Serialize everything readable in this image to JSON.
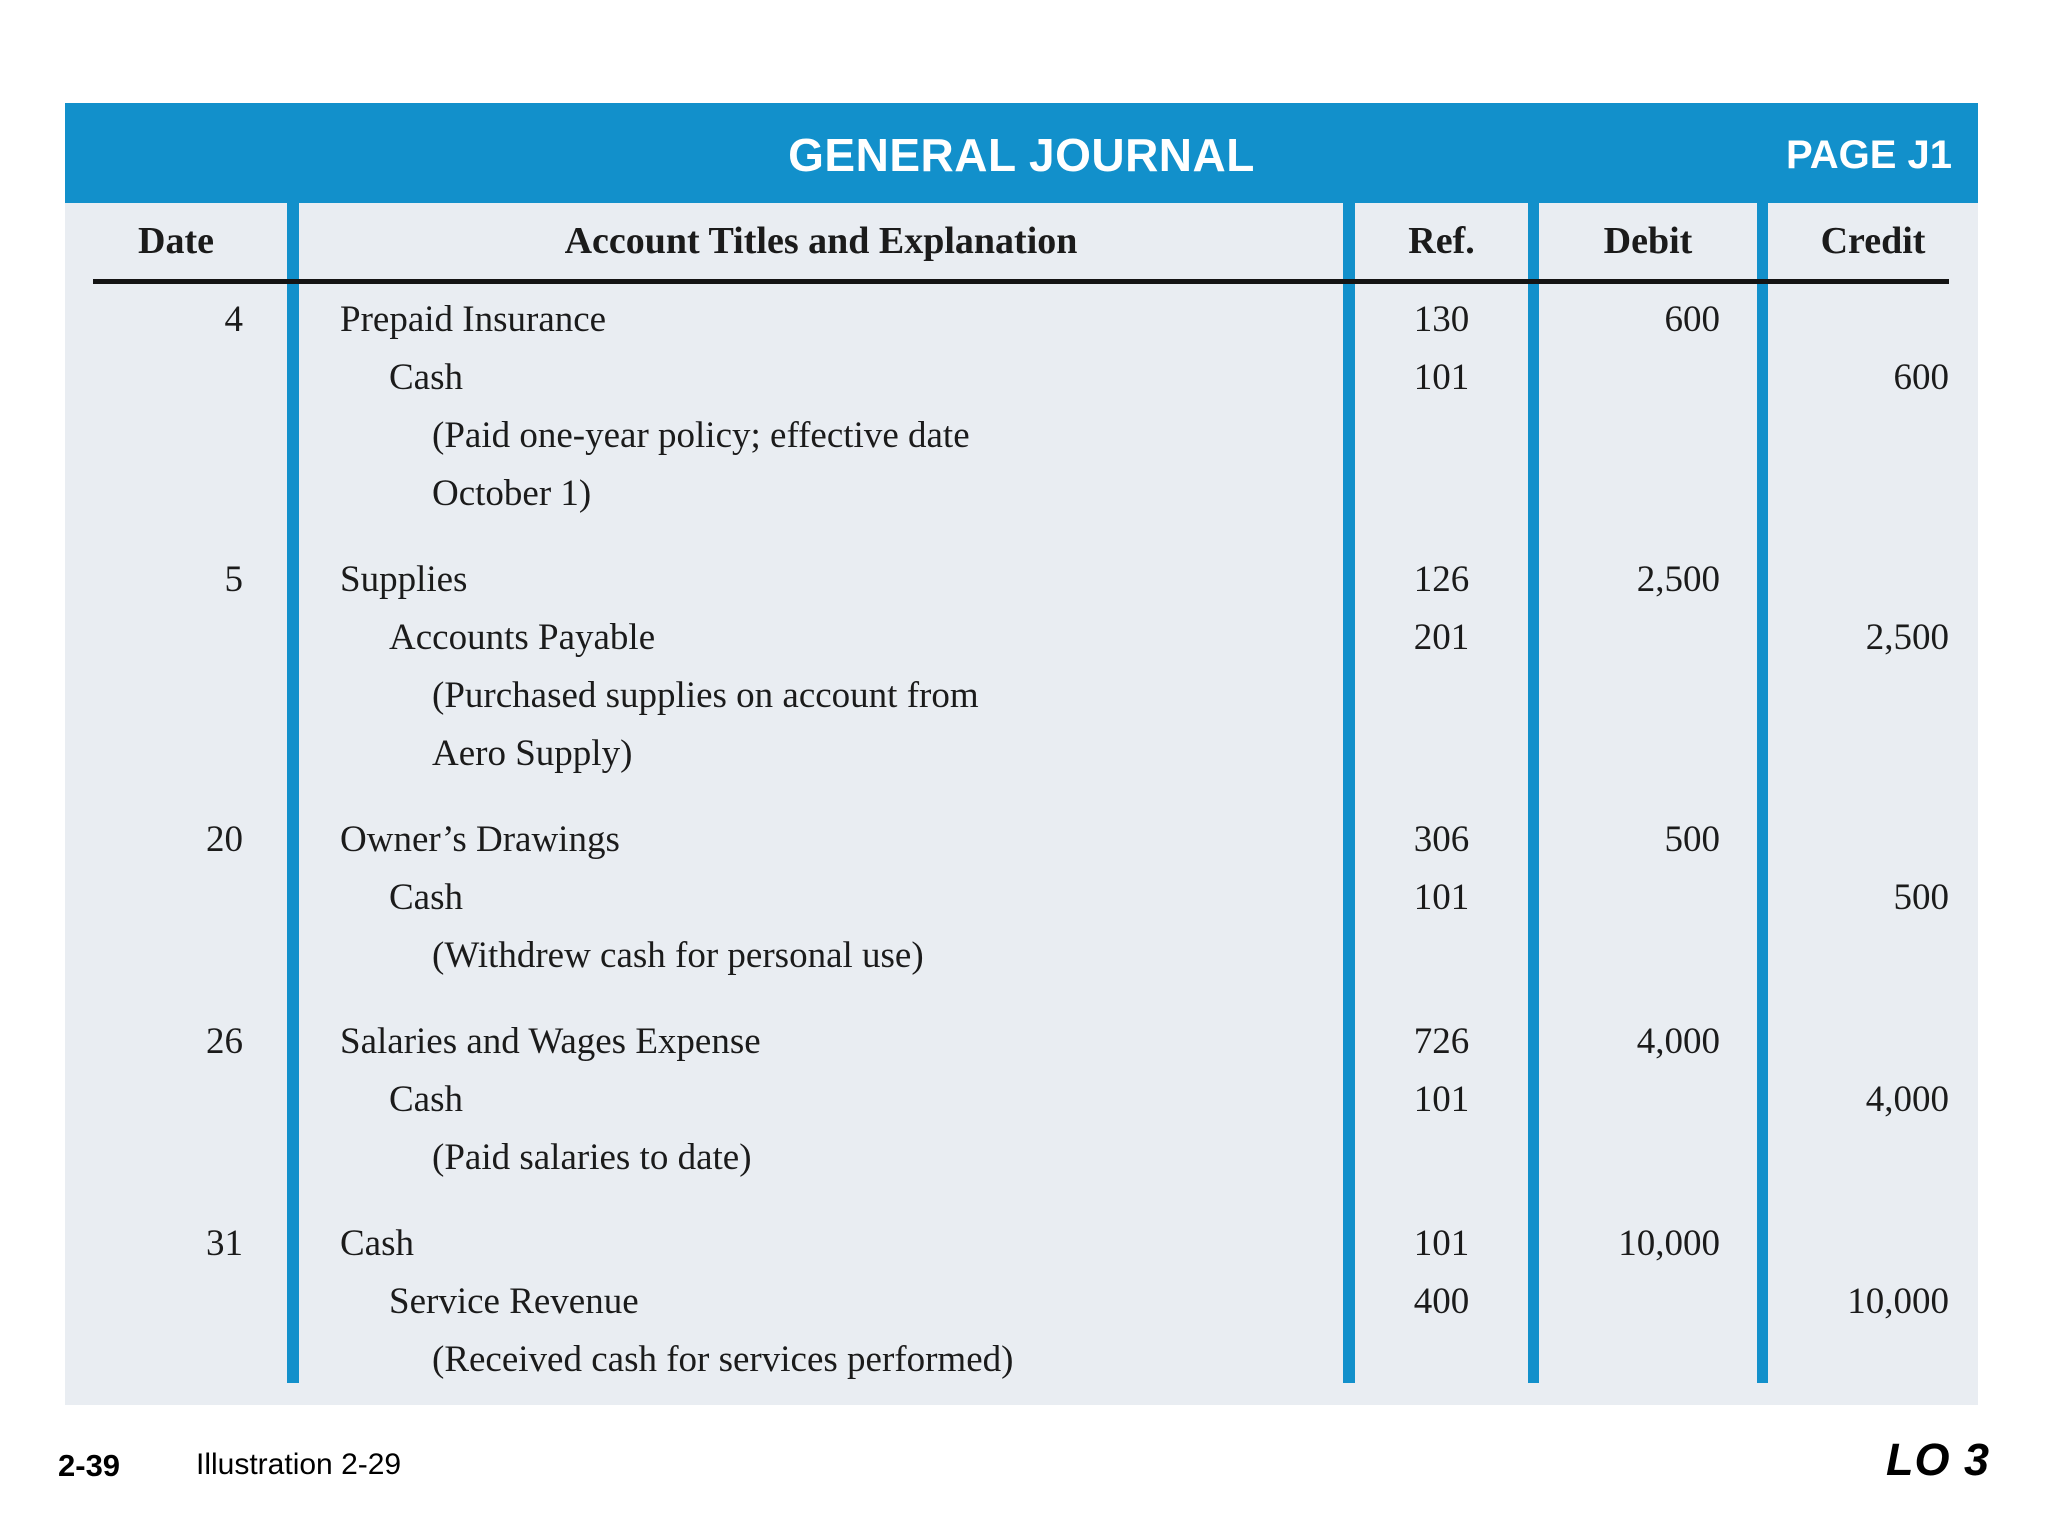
{
  "header": {
    "title": "GENERAL JOURNAL",
    "page_label": "PAGE J1"
  },
  "columns": {
    "date": "Date",
    "account": "Account Titles and Explanation",
    "ref": "Ref.",
    "debit": "Debit",
    "credit": "Credit"
  },
  "entries": [
    {
      "date": "4",
      "lines": [
        {
          "text": "Prepaid Insurance",
          "indent": 1,
          "ref": "130",
          "debit": "600",
          "credit": ""
        },
        {
          "text": "Cash",
          "indent": 2,
          "ref": "101",
          "debit": "",
          "credit": "600"
        },
        {
          "text": "(Paid one-year policy; effective date",
          "indent": 3,
          "ref": "",
          "debit": "",
          "credit": ""
        },
        {
          "text": "October 1)",
          "indent": 3,
          "ref": "",
          "debit": "",
          "credit": ""
        }
      ]
    },
    {
      "date": "5",
      "lines": [
        {
          "text": "Supplies",
          "indent": 1,
          "ref": "126",
          "debit": "2,500",
          "credit": ""
        },
        {
          "text": "Accounts Payable",
          "indent": 2,
          "ref": "201",
          "debit": "",
          "credit": "2,500"
        },
        {
          "text": "(Purchased supplies on account from",
          "indent": 3,
          "ref": "",
          "debit": "",
          "credit": ""
        },
        {
          "text": "Aero Supply)",
          "indent": 3,
          "ref": "",
          "debit": "",
          "credit": ""
        }
      ]
    },
    {
      "date": "20",
      "lines": [
        {
          "text": "Owner’s Drawings",
          "indent": 1,
          "ref": "306",
          "debit": "500",
          "credit": ""
        },
        {
          "text": "Cash",
          "indent": 2,
          "ref": "101",
          "debit": "",
          "credit": "500"
        },
        {
          "text": "(Withdrew cash for personal use)",
          "indent": 3,
          "ref": "",
          "debit": "",
          "credit": ""
        }
      ]
    },
    {
      "date": "26",
      "lines": [
        {
          "text": "Salaries and Wages Expense",
          "indent": 1,
          "ref": "726",
          "debit": "4,000",
          "credit": ""
        },
        {
          "text": "Cash",
          "indent": 2,
          "ref": "101",
          "debit": "",
          "credit": "4,000"
        },
        {
          "text": "(Paid salaries to date)",
          "indent": 3,
          "ref": "",
          "debit": "",
          "credit": ""
        }
      ]
    },
    {
      "date": "31",
      "lines": [
        {
          "text": "Cash",
          "indent": 1,
          "ref": "101",
          "debit": "10,000",
          "credit": ""
        },
        {
          "text": "Service Revenue",
          "indent": 2,
          "ref": "400",
          "debit": "",
          "credit": "10,000"
        },
        {
          "text": "(Received cash for services performed)",
          "indent": 3,
          "ref": "",
          "debit": "",
          "credit": ""
        }
      ]
    }
  ],
  "footer": {
    "slide_number": "2-39",
    "illustration_label": "Illustration 2-29",
    "learning_objective": "LO 3"
  },
  "colors": {
    "accent_blue": "#1290cb",
    "table_background": "#e9edf2",
    "rule_black": "#141414"
  }
}
